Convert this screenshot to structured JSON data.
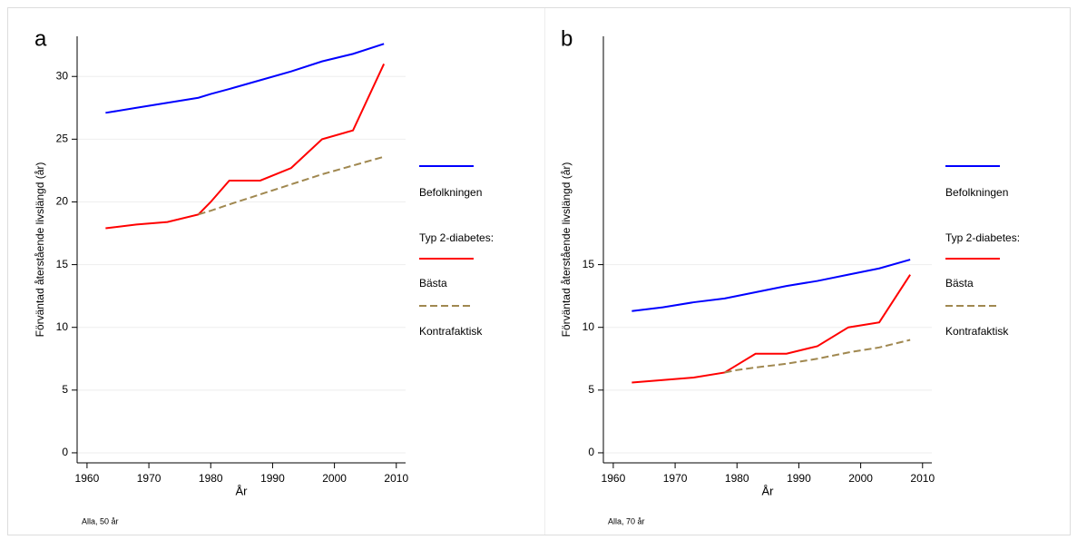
{
  "chart_data": [
    {
      "type": "line",
      "panel_label": "a",
      "y_label": "Förväntad återstående livslängd (år)",
      "x_label": "År",
      "note": "Alla, 50 år",
      "x": [
        1963,
        1968,
        1973,
        1978,
        1980,
        1983,
        1988,
        1993,
        1998,
        2003,
        2008
      ],
      "xlim": [
        1958.4,
        2011.5
      ],
      "xticks": [
        1960,
        1970,
        1980,
        1990,
        2000,
        2010
      ],
      "ylim": [
        -0.8,
        33.2
      ],
      "yticks": [
        0,
        5,
        10,
        15,
        20,
        25,
        30
      ],
      "grid": true,
      "legend_title": "Typ 2-diabetes:",
      "series": [
        {
          "name": "Befolkningen",
          "color": "#0000ff",
          "dashed": false,
          "values": [
            27.1,
            27.5,
            27.9,
            28.3,
            28.6,
            29.0,
            29.7,
            30.4,
            31.2,
            31.8,
            32.6
          ]
        },
        {
          "name": "Bästa",
          "color": "#ff0000",
          "dashed": false,
          "values": [
            17.9,
            18.2,
            18.4,
            19.0,
            20.0,
            21.7,
            21.7,
            22.7,
            25.0,
            25.7,
            31.0
          ]
        },
        {
          "name": "Kontrafaktisk",
          "color": "#a08850",
          "dashed": true,
          "values": [
            null,
            null,
            null,
            19.0,
            19.3,
            19.8,
            20.6,
            21.4,
            22.2,
            22.9,
            23.6
          ]
        }
      ]
    },
    {
      "type": "line",
      "panel_label": "b",
      "y_label": "Förväntad återstående livslängd (år)",
      "x_label": "År",
      "note": "Alla, 70 år",
      "x": [
        1963,
        1968,
        1973,
        1978,
        1980,
        1983,
        1988,
        1993,
        1998,
        2003,
        2008
      ],
      "xlim": [
        1958.4,
        2011.5
      ],
      "xticks": [
        1960,
        1970,
        1980,
        1990,
        2000,
        2010
      ],
      "ylim": [
        -0.8,
        33.2
      ],
      "yticks": [
        0,
        5,
        10,
        15
      ],
      "grid": true,
      "legend_title": "Typ 2-diabetes:",
      "series": [
        {
          "name": "Befolkningen",
          "color": "#0000ff",
          "dashed": false,
          "values": [
            11.3,
            11.6,
            12.0,
            12.3,
            12.5,
            12.8,
            13.3,
            13.7,
            14.2,
            14.7,
            15.4
          ]
        },
        {
          "name": "Bästa",
          "color": "#ff0000",
          "dashed": false,
          "values": [
            5.6,
            5.8,
            6.0,
            6.4,
            7.0,
            7.9,
            7.9,
            8.5,
            10.0,
            10.4,
            14.2
          ]
        },
        {
          "name": "Kontrafaktisk",
          "color": "#a08850",
          "dashed": true,
          "values": [
            null,
            null,
            null,
            6.4,
            6.6,
            6.8,
            7.1,
            7.5,
            8.0,
            8.4,
            9.0
          ]
        }
      ]
    }
  ]
}
